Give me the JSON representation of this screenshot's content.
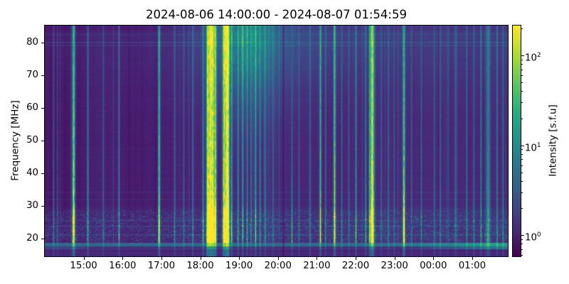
{
  "title": "2024-08-06 14:00:00 - 2024-08-07 01:54:59",
  "axes": {
    "ylabel": "Frequency [MHz]",
    "y_ticks": [
      20,
      30,
      40,
      50,
      60,
      70,
      80
    ],
    "x_ticks": [
      {
        "hour": 1,
        "label": "15:00"
      },
      {
        "hour": 2,
        "label": "16:00"
      },
      {
        "hour": 3,
        "label": "17:00"
      },
      {
        "hour": 4,
        "label": "18:00"
      },
      {
        "hour": 5,
        "label": "19:00"
      },
      {
        "hour": 6,
        "label": "20:00"
      },
      {
        "hour": 7,
        "label": "21:00"
      },
      {
        "hour": 8,
        "label": "22:00"
      },
      {
        "hour": 9,
        "label": "23:00"
      },
      {
        "hour": 10,
        "label": "00:00"
      },
      {
        "hour": 11,
        "label": "01:00"
      }
    ]
  },
  "colorbar": {
    "label": "Intensity [s.f.u]",
    "scale": "log",
    "major_tick_exponents": [
      0,
      1,
      2
    ],
    "clim": [
      0.58,
      215
    ]
  },
  "chart_data": {
    "type": "heatmap",
    "subtype": "solar-radio-spectrogram",
    "title": "2024-08-06 14:00:00 - 2024-08-07 01:54:59",
    "colormap": "viridis",
    "x_start": "2024-08-06 14:00:00",
    "x_end": "2024-08-07 01:54:59",
    "duration_hours": 11.9164,
    "ylabel": "Frequency [MHz]",
    "ylim_mhz": [
      14.58,
      85.2
    ],
    "intensity_clim_sfu": [
      0.58,
      215
    ],
    "background_level": 0.076,
    "bursts_format": "[time, intensity_norm, width_px, top_fade]",
    "bursts": [
      [
        "14:13",
        0.35,
        1.0,
        0.45
      ],
      [
        "14:19",
        0.25,
        1.0,
        0.45
      ],
      [
        "14:44",
        0.98,
        2.0,
        0.62
      ],
      [
        "15:06",
        0.5,
        1.2,
        0.5
      ],
      [
        "15:30",
        0.3,
        1.0,
        0.45
      ],
      [
        "15:54",
        0.55,
        0.9,
        0.6
      ],
      [
        "16:56",
        0.82,
        1.5,
        0.62
      ],
      [
        "17:20",
        0.35,
        1.0,
        0.45
      ],
      [
        "17:34",
        0.3,
        1.0,
        0.45
      ],
      [
        "17:48",
        0.38,
        1.0,
        0.48
      ],
      [
        "18:04",
        0.5,
        1.2,
        0.52
      ],
      [
        "18:11",
        0.95,
        2.2,
        0.62
      ],
      [
        "18:15",
        1.0,
        2.3,
        0.66
      ],
      [
        "18:19",
        1.0,
        2.3,
        0.64
      ],
      [
        "18:23",
        0.9,
        1.8,
        0.58
      ],
      [
        "18:36",
        0.95,
        2.0,
        0.62
      ],
      [
        "18:40",
        1.0,
        2.2,
        0.66
      ],
      [
        "18:43",
        0.9,
        1.8,
        0.6
      ],
      [
        "18:48",
        0.6,
        1.2,
        0.55
      ],
      [
        "18:58",
        0.5,
        1.0,
        0.52
      ],
      [
        "19:05",
        0.55,
        1.0,
        0.55
      ],
      [
        "19:12",
        0.45,
        0.9,
        0.5
      ],
      [
        "19:18",
        0.4,
        0.9,
        0.5
      ],
      [
        "19:25",
        0.6,
        1.0,
        0.55
      ],
      [
        "19:32",
        0.45,
        0.9,
        0.5
      ],
      [
        "19:40",
        0.4,
        0.9,
        0.48
      ],
      [
        "19:52",
        0.3,
        0.9,
        0.45
      ],
      [
        "20:21",
        0.5,
        1.0,
        0.12
      ],
      [
        "20:32",
        0.3,
        0.9,
        0.4
      ],
      [
        "20:49",
        0.4,
        0.9,
        0.5
      ],
      [
        "21:05",
        0.72,
        1.3,
        0.6
      ],
      [
        "21:13",
        0.35,
        0.9,
        0.48
      ],
      [
        "21:27",
        0.82,
        1.5,
        0.6
      ],
      [
        "21:38",
        0.35,
        0.9,
        0.45
      ],
      [
        "21:49",
        0.3,
        0.9,
        0.45
      ],
      [
        "22:00",
        0.5,
        1.1,
        0.55
      ],
      [
        "22:15",
        0.45,
        1.0,
        0.52
      ],
      [
        "22:21",
        0.55,
        0.9,
        0.55
      ],
      [
        "22:25",
        1.0,
        3.0,
        0.68
      ],
      [
        "22:39",
        0.3,
        0.9,
        0.45
      ],
      [
        "22:50",
        0.35,
        0.9,
        0.45
      ],
      [
        "22:59",
        0.3,
        0.9,
        0.45
      ],
      [
        "23:14",
        0.9,
        1.7,
        0.52
      ],
      [
        "23:26",
        0.3,
        0.9,
        0.45
      ],
      [
        "23:41",
        0.35,
        0.9,
        0.45
      ],
      [
        "00:01",
        0.3,
        0.9,
        0.45
      ],
      [
        "00:10",
        0.35,
        0.9,
        0.45
      ],
      [
        "00:34",
        0.3,
        0.9,
        0.45
      ],
      [
        "00:51",
        0.4,
        0.9,
        0.48
      ],
      [
        "01:02",
        0.35,
        0.9,
        0.45
      ],
      [
        "01:13",
        0.5,
        0.8,
        0.6
      ],
      [
        "01:24",
        0.42,
        3.2,
        0.5
      ],
      [
        "01:38",
        0.5,
        0.8,
        0.6
      ],
      [
        "01:47",
        0.35,
        0.9,
        0.45
      ]
    ],
    "dark_gaps_format": "[time, depth, width_px]",
    "dark_gaps": [
      [
        "20:08",
        0.6,
        1.2
      ],
      [
        "00:26",
        0.12,
        1.2
      ]
    ],
    "diffuse_emission": [
      {
        "time": "19:10",
        "sigma_min": 50,
        "amp": 0.2,
        "freq_fade": 0.36
      },
      {
        "time": "19:35",
        "sigma_min": 110,
        "amp": 0.08,
        "freq_fade": 0.3
      }
    ],
    "rfi_lines_mhz": [
      {
        "mhz": 80.2,
        "amp": 0.09
      },
      {
        "mhz": 79.3,
        "amp": 0.055
      },
      {
        "mhz": 82.6,
        "amp": 0.04
      },
      {
        "mhz": 34.3,
        "amp": 0.03
      },
      {
        "mhz": 32.2,
        "amp": 0.03
      },
      {
        "mhz": 28.5,
        "amp": 0.025
      },
      {
        "mhz": 25.7,
        "amp": 0.07
      },
      {
        "mhz": 23.9,
        "amp": 0.07
      },
      {
        "mhz": 21.3,
        "amp": 0.09
      }
    ],
    "noise_band_mhz": [
      17.8,
      30.5
    ],
    "ionospheric_band_mhz": [
      17.75,
      18.65
    ]
  }
}
